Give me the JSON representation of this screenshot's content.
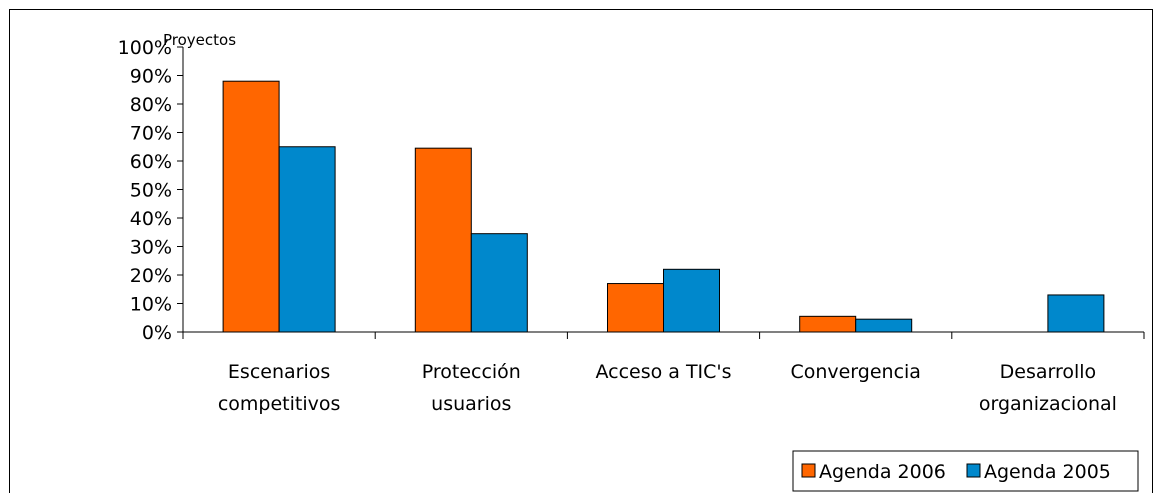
{
  "chart_data": {
    "type": "bar",
    "ylabel": "Proyectos",
    "ylim": [
      0,
      100
    ],
    "y_ticks": [
      "0%",
      "10%",
      "20%",
      "30%",
      "40%",
      "50%",
      "60%",
      "70%",
      "80%",
      "90%",
      "100%"
    ],
    "categories": [
      [
        "Escenarios",
        "competitivos"
      ],
      [
        "Protección",
        "usuarios"
      ],
      [
        "Acceso a TIC's"
      ],
      [
        "Convergencia"
      ],
      [
        "Desarrollo",
        "organizacional"
      ]
    ],
    "series": [
      {
        "name": "Agenda 2006",
        "color": "#FF6600",
        "values": [
          88,
          64.5,
          17,
          5.5,
          0
        ]
      },
      {
        "name": "Agenda 2005",
        "color": "#0088CC",
        "values": [
          65,
          34.5,
          22,
          4.5,
          13
        ]
      }
    ],
    "legend_position": "bottom-right"
  }
}
